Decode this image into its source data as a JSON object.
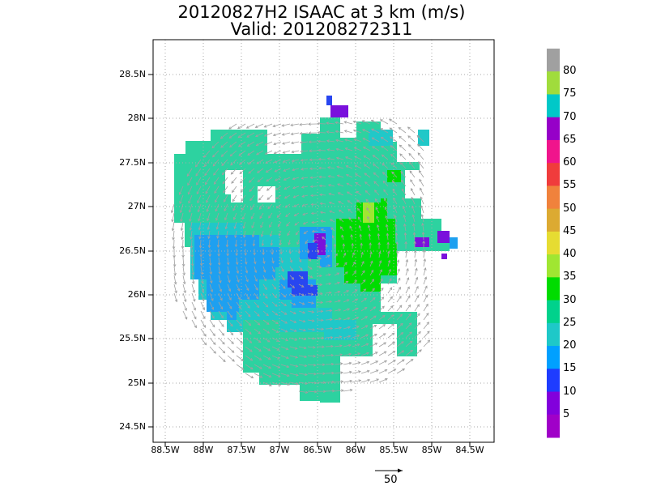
{
  "title_line1": "20120827H2 ISAAC at 3 km (m/s)",
  "title_line2": "Valid: 201208272311",
  "lat_ticks": [
    "28.5N",
    "28N",
    "27.5N",
    "27N",
    "26.5N",
    "26N",
    "25.5N",
    "25N",
    "24.5N"
  ],
  "lon_ticks": [
    "88.5W",
    "88W",
    "87.5W",
    "87W",
    "86.5W",
    "86W",
    "85.5W",
    "85W",
    "84.5W"
  ],
  "colorbar": {
    "labels": [
      "80",
      "75",
      "70",
      "65",
      "60",
      "55",
      "50",
      "45",
      "40",
      "35",
      "30",
      "25",
      "20",
      "15",
      "10",
      "5"
    ],
    "colors": [
      "#a0a0a0",
      "#a0dc3c",
      "#00c8c8",
      "#9600c8",
      "#f0148c",
      "#f03c3c",
      "#f0823c",
      "#dcaa32",
      "#e6dc32",
      "#a0e632",
      "#00dc00",
      "#00d28c",
      "#1ec8c8",
      "#00a0ff",
      "#1e3cff",
      "#8200dc",
      "#a000c8"
    ]
  },
  "map_colors": {
    "c25": "#2dd2a0",
    "c20": "#20c8c8",
    "c15": "#1ea0f0",
    "c10": "#2846f0",
    "c5": "#7a10dc",
    "c30": "#00dc00",
    "c35": "#a0e632",
    "arrow": "#a0a0a0"
  },
  "reference_vector_label": "50"
}
